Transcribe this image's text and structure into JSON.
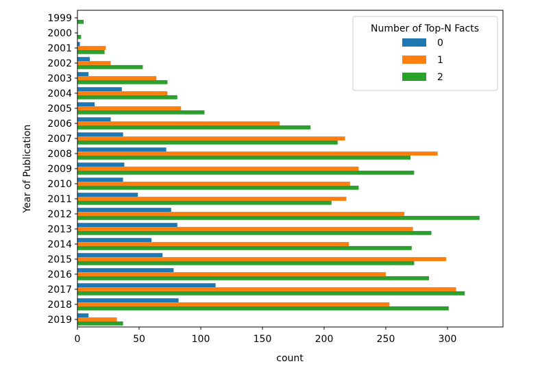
{
  "chart_data": {
    "type": "bar",
    "orientation": "horizontal",
    "categories": [
      "1999",
      "2000",
      "2001",
      "2002",
      "2003",
      "2004",
      "2005",
      "2006",
      "2007",
      "2008",
      "2009",
      "2010",
      "2011",
      "2012",
      "2013",
      "2014",
      "2015",
      "2016",
      "2017",
      "2018",
      "2019"
    ],
    "series": [
      {
        "name": "0",
        "color": "#1f77b4",
        "values": [
          0,
          0,
          2,
          10,
          9,
          36,
          14,
          27,
          37,
          72,
          38,
          37,
          49,
          76,
          81,
          60,
          69,
          78,
          112,
          82,
          9
        ]
      },
      {
        "name": "1",
        "color": "#ff7f0e",
        "values": [
          0,
          0,
          23,
          27,
          64,
          73,
          84,
          164,
          217,
          292,
          228,
          221,
          218,
          265,
          272,
          220,
          299,
          250,
          307,
          253,
          32
        ]
      },
      {
        "name": "2",
        "color": "#2ca02c",
        "values": [
          5,
          3,
          22,
          53,
          73,
          81,
          103,
          189,
          211,
          270,
          273,
          228,
          206,
          326,
          287,
          271,
          273,
          285,
          314,
          301,
          37
        ]
      }
    ],
    "xlabel": "count",
    "ylabel": "Year of Publication",
    "xlim": [
      0,
      345
    ],
    "xticks": [
      0,
      50,
      100,
      150,
      200,
      250,
      300
    ],
    "grid": false,
    "legend": {
      "title": "Number of Top-N Facts",
      "position": "top-right"
    }
  }
}
